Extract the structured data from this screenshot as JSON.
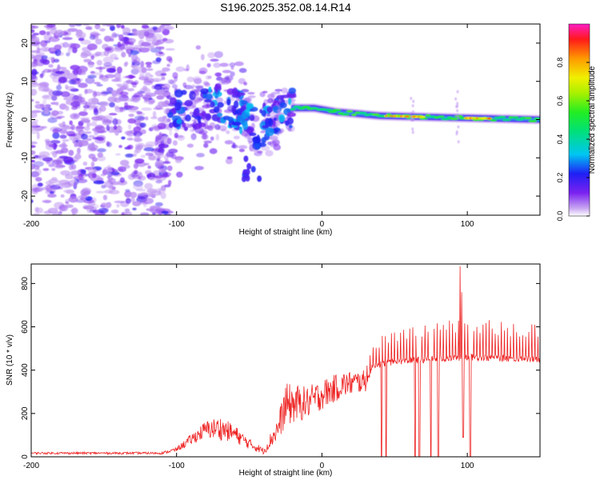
{
  "title": "S196.2025.352.08.14.R14",
  "chart_data": [
    {
      "type": "heatmap",
      "xlabel": "Height of straight line (km)",
      "ylabel": "Frequency (Hz)",
      "xlim": [
        -200,
        150
      ],
      "ylim": [
        -25,
        25
      ],
      "xticks": [
        -200,
        -100,
        0,
        100
      ],
      "yticks": [
        -20,
        -10,
        0,
        10,
        20
      ],
      "colorbar": {
        "label": "Normalized spectral amplitude",
        "range": [
          0,
          1
        ],
        "ticks": [
          0,
          0.2,
          0.4,
          0.6,
          0.8
        ],
        "tick_labels": [
          "0.0",
          "0.2",
          "0.4",
          "0.6",
          "0.8"
        ]
      },
      "features": {
        "noise_region_x": [
          -200,
          -105
        ],
        "scatter_region_x": [
          -105,
          -20
        ],
        "streak_region_x": [
          -20,
          150
        ],
        "ridge_points": [
          {
            "x": -100,
            "f": 3
          },
          {
            "x": -85,
            "f": 2
          },
          {
            "x": -70,
            "f": 4
          },
          {
            "x": -55,
            "f": 2
          },
          {
            "x": -45,
            "f": -3
          },
          {
            "x": -35,
            "f": 0
          },
          {
            "x": -20,
            "f": 3
          },
          {
            "x": -5,
            "f": 3
          },
          {
            "x": 10,
            "f": 2
          },
          {
            "x": 40,
            "f": 1
          },
          {
            "x": 90,
            "f": 0.5
          },
          {
            "x": 150,
            "f": 0
          }
        ],
        "peak_segments_x": [
          [
            45,
            70
          ],
          [
            100,
            115
          ]
        ]
      }
    },
    {
      "type": "line",
      "xlabel": "Height of straight line (km)",
      "ylabel": "SNR (10 * v/v)",
      "xlim": [
        -200,
        150
      ],
      "ylim": [
        0,
        890
      ],
      "xticks": [
        -200,
        -100,
        0,
        100
      ],
      "yticks": [
        0,
        200,
        400,
        600,
        800
      ],
      "line_color": "#ee2222",
      "series": [
        {
          "name": "SNR",
          "envelope": [
            {
              "x": -200,
              "base": 15,
              "spread": 10
            },
            {
              "x": -110,
              "base": 15,
              "spread": 10
            },
            {
              "x": -100,
              "base": 30,
              "spread": 20
            },
            {
              "x": -90,
              "base": 70,
              "spread": 50
            },
            {
              "x": -80,
              "base": 110,
              "spread": 80
            },
            {
              "x": -70,
              "base": 110,
              "spread": 110
            },
            {
              "x": -60,
              "base": 90,
              "spread": 80
            },
            {
              "x": -50,
              "base": 50,
              "spread": 50
            },
            {
              "x": -40,
              "base": 20,
              "spread": 30
            },
            {
              "x": -30,
              "base": 110,
              "spread": 120
            },
            {
              "x": -25,
              "base": 200,
              "spread": 200
            },
            {
              "x": -10,
              "base": 220,
              "spread": 150
            },
            {
              "x": 0,
              "base": 260,
              "spread": 140
            },
            {
              "x": 15,
              "base": 310,
              "spread": 120
            },
            {
              "x": 30,
              "base": 330,
              "spread": 100
            },
            {
              "x": 35,
              "base": 420,
              "spread": 120
            },
            {
              "x": 50,
              "base": 440,
              "spread": 150
            },
            {
              "x": 75,
              "base": 450,
              "spread": 170
            },
            {
              "x": 100,
              "base": 460,
              "spread": 180
            },
            {
              "x": 150,
              "base": 450,
              "spread": 160
            }
          ],
          "dropouts_x": [
            41,
            44,
            64,
            67,
            75,
            80,
            102
          ],
          "spikes": [
            {
              "x": 95,
              "value": 880
            },
            {
              "x": 96,
              "value": 760
            }
          ],
          "dip": {
            "x": 97,
            "value": 90
          }
        }
      ]
    }
  ]
}
